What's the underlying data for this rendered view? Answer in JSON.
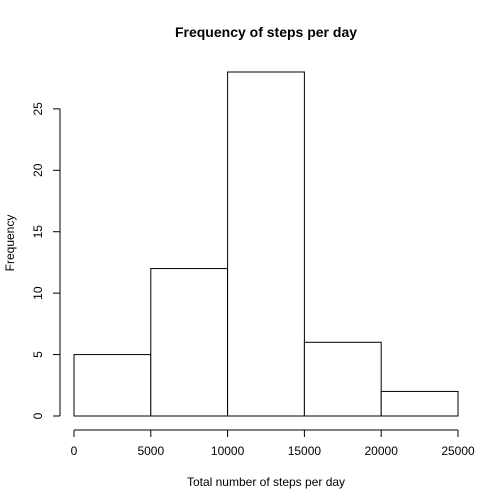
{
  "chart_data": {
    "type": "bar",
    "title": "Frequency of steps per day",
    "xlabel": "Total number of steps per day",
    "ylabel": "Frequency",
    "bins": [
      {
        "from": 0,
        "to": 5000,
        "count": 5
      },
      {
        "from": 5000,
        "to": 10000,
        "count": 12
      },
      {
        "from": 10000,
        "to": 15000,
        "count": 28
      },
      {
        "from": 15000,
        "to": 20000,
        "count": 6
      },
      {
        "from": 20000,
        "to": 25000,
        "count": 2
      }
    ],
    "xlim": [
      0,
      25000
    ],
    "ylim": [
      0,
      28
    ],
    "x_ticks": [
      0,
      5000,
      10000,
      15000,
      20000,
      25000
    ],
    "y_ticks": [
      0,
      5,
      10,
      15,
      20,
      25
    ],
    "grid": false,
    "bar_fill": "#ffffff",
    "bar_stroke": "#000000"
  }
}
